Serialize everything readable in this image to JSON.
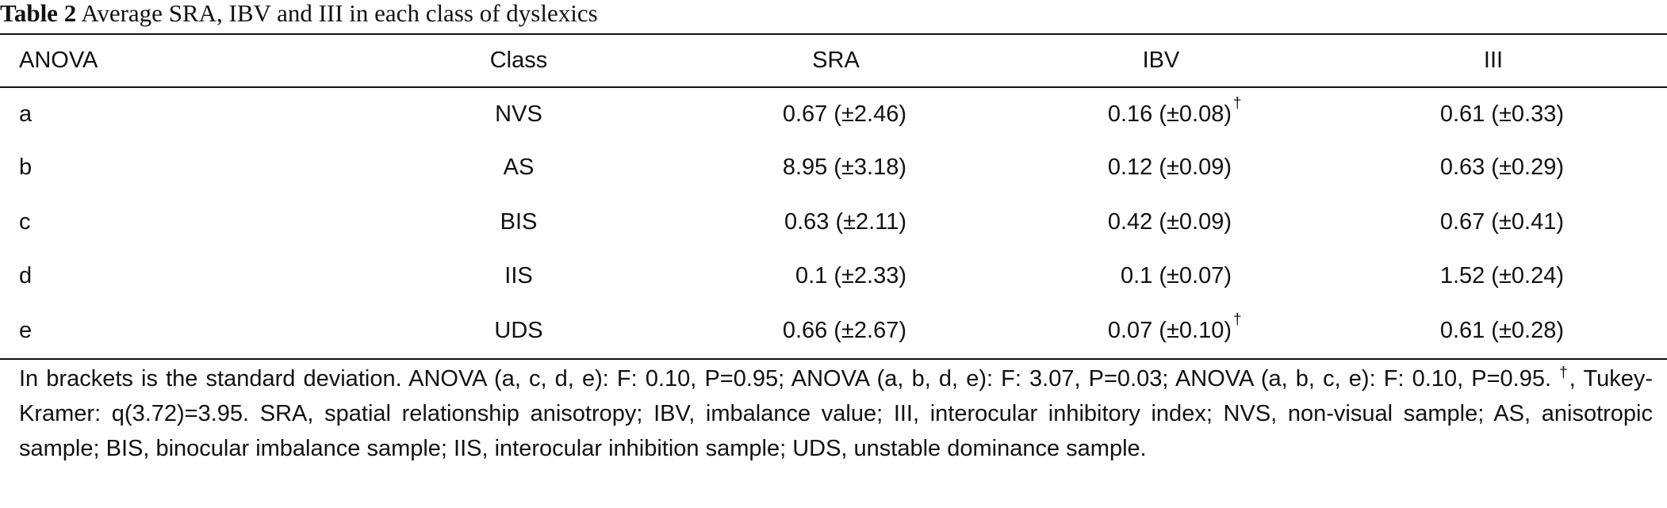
{
  "caption": {
    "label": "Table 2",
    "text": "Average SRA, IBV and III in each class of dyslexics"
  },
  "table": {
    "headers": [
      "ANOVA",
      "Class",
      "SRA",
      "IBV",
      "III"
    ],
    "rows": [
      {
        "anova": "a",
        "class": "NVS",
        "sra": "0.67 (±2.46)",
        "ibv": "0.16 (±0.08)",
        "ibv_mark": "†",
        "iii": "0.61 (±0.33)"
      },
      {
        "anova": "b",
        "class": "AS",
        "sra": "8.95 (±3.18)",
        "ibv": "0.12 (±0.09)",
        "ibv_mark": "",
        "iii": "0.63 (±0.29)"
      },
      {
        "anova": "c",
        "class": "BIS",
        "sra": "0.63 (±2.11)",
        "ibv": "0.42 (±0.09)",
        "ibv_mark": "",
        "iii": "0.67 (±0.41)"
      },
      {
        "anova": "d",
        "class": "IIS",
        "sra": "0.1 (±2.33)",
        "ibv": "0.1 (±0.07)",
        "ibv_mark": "",
        "iii": "1.52 (±0.24)"
      },
      {
        "anova": "e",
        "class": "UDS",
        "sra": "0.66 (±2.67)",
        "ibv": "0.07 (±0.10)",
        "ibv_mark": "†",
        "iii": "0.61 (±0.28)"
      }
    ]
  },
  "footnote": {
    "part1": "In brackets is the standard deviation. ANOVA (a, c, d, e): F: 0.10, P=0.95; ANOVA (a, b, d, e): F: 3.07, P=0.03; ANOVA (a, b, c, e): F: 0.10, P=0.95. ",
    "dagger": "†",
    "part2": ", Tukey-Kramer: q(3.72)=3.95. SRA, spatial relationship anisotropy; IBV, imbalance value; III, interocular inhibitory index; NVS, non-visual sample; AS, anisotropic sample; BIS, binocular imbalance sample; IIS, interocular inhibition sample; UDS, unstable dominance sample."
  }
}
